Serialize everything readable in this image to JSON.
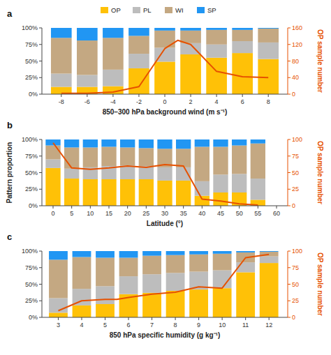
{
  "chart_data": [
    {
      "type": "bar",
      "stacked": true,
      "title": "a",
      "xlabel": "850–300 hPa background wind (m s⁻¹)",
      "y2label": "OP sample number",
      "x": [
        -8,
        -6,
        -4,
        -2,
        0,
        2,
        4,
        6,
        8
      ],
      "xlim": [
        -9.5,
        9.5
      ],
      "xticks": [
        -8,
        -6,
        -4,
        -2,
        0,
        2,
        4,
        6,
        8
      ],
      "ylim": [
        0,
        1.0
      ],
      "yticks": [
        {
          "value": 0,
          "label": "0%"
        },
        {
          "value": 0.25,
          "label": "25%"
        },
        {
          "value": 0.5,
          "label": "50%"
        },
        {
          "value": 0.75,
          "label": "75%"
        },
        {
          "value": 1.0,
          "label": "100%"
        }
      ],
      "y2lim": [
        0,
        160
      ],
      "y2ticks": [
        0,
        40,
        80,
        120,
        160
      ],
      "grid": false,
      "legend": "top",
      "series": [
        {
          "name": "OP",
          "color": "#FFC107",
          "values": [
            0.11,
            0.11,
            0.12,
            0.39,
            0.49,
            0.6,
            0.55,
            0.62,
            0.53
          ]
        },
        {
          "name": "PL",
          "color": "#BDBDBD",
          "values": [
            0.2,
            0.18,
            0.25,
            0.22,
            0.21,
            0.17,
            0.2,
            0.18,
            0.25
          ]
        },
        {
          "name": "WI",
          "color": "#C4A882",
          "values": [
            0.54,
            0.52,
            0.48,
            0.27,
            0.26,
            0.19,
            0.22,
            0.17,
            0.21
          ]
        },
        {
          "name": "SP",
          "color": "#2196F3",
          "values": [
            0.15,
            0.19,
            0.15,
            0.12,
            0.04,
            0.04,
            0.03,
            0.03,
            0.01
          ]
        },
        {
          "type": "line",
          "axis": "y2",
          "color": "#E65100",
          "x": [
            -8,
            -6,
            -4,
            -2,
            0,
            1,
            2,
            4,
            6,
            8
          ],
          "values": [
            2,
            2,
            5,
            18,
            110,
            130,
            120,
            55,
            42,
            40
          ]
        }
      ]
    },
    {
      "type": "bar",
      "stacked": true,
      "title": "b",
      "xlabel": "Latitude (°)",
      "ylabel": "Pattern proportion",
      "y2label": "OP sample number",
      "x": [
        0,
        5,
        10,
        15,
        20,
        25,
        30,
        35,
        40,
        45,
        50,
        55
      ],
      "xlim": [
        -3,
        63
      ],
      "xticks": [
        0,
        5,
        10,
        15,
        20,
        25,
        30,
        35,
        40,
        45,
        50,
        55,
        60
      ],
      "ylim": [
        0,
        1.0
      ],
      "yticks": [
        {
          "value": 0,
          "label": "0%"
        },
        {
          "value": 0.25,
          "label": "25%"
        },
        {
          "value": 0.5,
          "label": "50%"
        },
        {
          "value": 0.75,
          "label": "75%"
        },
        {
          "value": 1.0,
          "label": "100%"
        }
      ],
      "y2lim": [
        0,
        100
      ],
      "y2ticks": [
        0,
        25,
        50,
        75,
        100
      ],
      "grid": false,
      "series": [
        {
          "name": "OP",
          "color": "#FFC107",
          "values": [
            0.57,
            0.41,
            0.4,
            0.4,
            0.4,
            0.4,
            0.38,
            0.38,
            0.15,
            0.2,
            0.2,
            0.09
          ]
        },
        {
          "name": "PL",
          "color": "#BDBDBD",
          "values": [
            0.13,
            0.15,
            0.18,
            0.2,
            0.21,
            0.2,
            0.2,
            0.2,
            0.22,
            0.27,
            0.28,
            0.32
          ]
        },
        {
          "name": "WI",
          "color": "#C4A882",
          "values": [
            0.21,
            0.32,
            0.3,
            0.29,
            0.27,
            0.27,
            0.28,
            0.28,
            0.52,
            0.42,
            0.43,
            0.53
          ]
        },
        {
          "name": "SP",
          "color": "#2196F3",
          "values": [
            0.09,
            0.12,
            0.12,
            0.11,
            0.12,
            0.13,
            0.14,
            0.14,
            0.11,
            0.11,
            0.09,
            0.06
          ]
        },
        {
          "type": "line",
          "axis": "y2",
          "color": "#E65100",
          "x": [
            0,
            5,
            10,
            15,
            20,
            25,
            30,
            35,
            40,
            45,
            50,
            55
          ],
          "values": [
            95,
            57,
            55,
            57,
            60,
            58,
            62,
            60,
            10,
            7,
            3,
            1
          ]
        }
      ]
    },
    {
      "type": "bar",
      "stacked": true,
      "title": "c",
      "xlabel": "850 hPa specific humidity (g kg⁻¹)",
      "y2label": "OP sample number",
      "x": [
        3,
        4,
        5,
        6,
        7,
        8,
        9,
        10,
        11,
        12
      ],
      "xlim": [
        2.3,
        12.8
      ],
      "xticks": [
        3,
        4,
        5,
        6,
        7,
        8,
        9,
        10,
        11,
        12
      ],
      "ylim": [
        0,
        1.0
      ],
      "yticks": [
        {
          "value": 0,
          "label": "0%"
        },
        {
          "value": 0.25,
          "label": "25%"
        },
        {
          "value": 0.5,
          "label": "50%"
        },
        {
          "value": 0.75,
          "label": "75%"
        },
        {
          "value": 1.0,
          "label": "100%"
        }
      ],
      "y2lim": [
        0,
        100
      ],
      "y2ticks": [
        0,
        25,
        50,
        75,
        100
      ],
      "grid": false,
      "series": [
        {
          "name": "OP",
          "color": "#FFC107",
          "values": [
            0.07,
            0.18,
            0.2,
            0.35,
            0.37,
            0.4,
            0.42,
            0.44,
            0.68,
            0.82
          ]
        },
        {
          "name": "PL",
          "color": "#BDBDBD",
          "values": [
            0.22,
            0.25,
            0.27,
            0.27,
            0.28,
            0.27,
            0.27,
            0.27,
            0.15,
            0.1
          ]
        },
        {
          "name": "WI",
          "color": "#C4A882",
          "values": [
            0.58,
            0.48,
            0.43,
            0.28,
            0.28,
            0.27,
            0.26,
            0.25,
            0.15,
            0.07
          ]
        },
        {
          "name": "SP",
          "color": "#2196F3",
          "values": [
            0.13,
            0.09,
            0.1,
            0.1,
            0.07,
            0.06,
            0.05,
            0.04,
            0.02,
            0.01
          ]
        },
        {
          "type": "line",
          "axis": "y2",
          "color": "#E65100",
          "x": [
            3,
            4,
            5,
            5.5,
            6,
            7,
            8,
            9,
            10,
            11,
            12
          ],
          "values": [
            10,
            25,
            27,
            27,
            30,
            35,
            38,
            46,
            44,
            90,
            95
          ]
        }
      ]
    }
  ]
}
